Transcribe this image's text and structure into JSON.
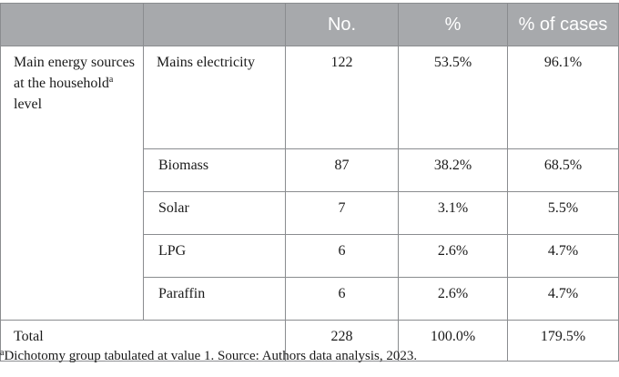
{
  "table": {
    "headers": [
      "",
      "",
      "No.",
      "%",
      "% of cases"
    ],
    "group_label": "Main energy sources at the household",
    "group_label_sup": "a",
    "group_label_tail": "level",
    "rows": [
      {
        "source": "Mains electricity",
        "no": "122",
        "pct": "53.5%",
        "pct_cases": "96.1%"
      },
      {
        "source": "Biomass",
        "no": "87",
        "pct": "38.2%",
        "pct_cases": "68.5%"
      },
      {
        "source": "Solar",
        "no": "7",
        "pct": "3.1%",
        "pct_cases": "5.5%"
      },
      {
        "source": "LPG",
        "no": "6",
        "pct": "2.6%",
        "pct_cases": "4.7%"
      },
      {
        "source": "Paraffin",
        "no": "6",
        "pct": "2.6%",
        "pct_cases": "4.7%"
      }
    ],
    "total": {
      "label": "Total",
      "no": "228",
      "pct": "100.0%",
      "pct_cases": "179.5%"
    }
  },
  "footnote": {
    "marker": "a",
    "text": "Dichotomy group tabulated at value 1. Source: Authors data analysis, 2023."
  },
  "colors": {
    "header_bg": "#a7a9ac",
    "header_text": "#ffffff",
    "border": "#8a8c8f"
  }
}
